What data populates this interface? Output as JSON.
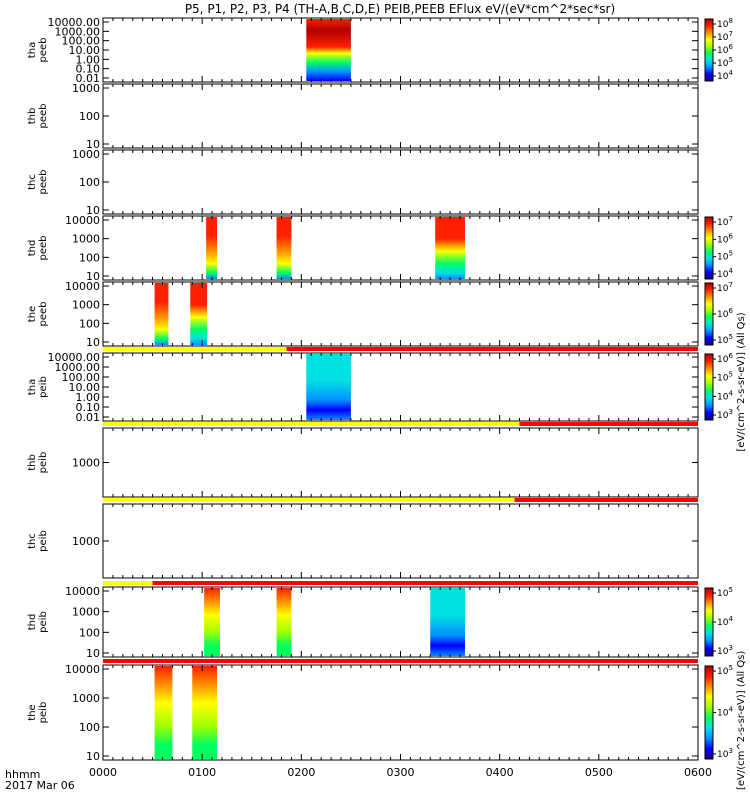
{
  "chart_data": {
    "type": "heatmap",
    "title": "P5, P1, P2, P3, P4 (TH-A,B,C,D,E) PEIB,PEEB EFlux eV/(eV*cm^2*sec*sr)",
    "x_axis": {
      "range_hhmm": [
        "0000",
        "0600"
      ],
      "tick_labels": [
        "0000",
        "0100",
        "0200",
        "0300",
        "0400",
        "0500",
        "0600"
      ],
      "label_line1": "hhmm",
      "label_line2": "2017 Mar 06"
    },
    "right_labels": {
      "eflux_units": "[eV/(cm^2-s-sr-eV)] (All Qs)"
    },
    "panels": [
      {
        "id": "tha-peeb",
        "ylabel": [
          "tha",
          "peeb"
        ],
        "yticks": [
          "10000.00",
          "1000.00",
          "100.00",
          "10.00",
          "1.00",
          "0.10",
          "0.01"
        ],
        "colorbar": [
          "10^4",
          "10^5",
          "10^6",
          "10^7",
          "10^8"
        ],
        "has_colorbar": true,
        "intervals": [
          {
            "start": "0205",
            "end": "0250",
            "profile": "tha_e"
          }
        ]
      },
      {
        "id": "thb-peeb",
        "ylabel": [
          "thb",
          "peeb"
        ],
        "yticks": [
          "1000",
          "100",
          "10"
        ],
        "has_colorbar": false,
        "intervals": []
      },
      {
        "id": "thc-peeb",
        "ylabel": [
          "thc",
          "peeb"
        ],
        "yticks": [
          "1000",
          "100",
          "10"
        ],
        "has_colorbar": false,
        "intervals": []
      },
      {
        "id": "thd-peeb",
        "ylabel": [
          "thd",
          "peeb"
        ],
        "yticks": [
          "10000",
          "1000",
          "100",
          "10"
        ],
        "colorbar": [
          "10^4",
          "10^5",
          "10^6",
          "10^7"
        ],
        "has_colorbar": true,
        "intervals": [
          {
            "start": "0104",
            "end": "0115",
            "profile": "e_hot"
          },
          {
            "start": "0175",
            "end": "0190",
            "profile": "e_hot"
          },
          {
            "start": "0335",
            "end": "0365",
            "profile": "e_mix"
          }
        ]
      },
      {
        "id": "the-peeb",
        "ylabel": [
          "the",
          "peeb"
        ],
        "yticks": [
          "10000",
          "1000",
          "100",
          "10"
        ],
        "colorbar": [
          "10^5",
          "10^6",
          "10^7"
        ],
        "has_colorbar": true,
        "intervals": [
          {
            "start": "0052",
            "end": "0066",
            "profile": "e_hot"
          },
          {
            "start": "0088",
            "end": "0105",
            "profile": "e_mix"
          }
        ]
      },
      {
        "id": "tha-peib",
        "ylabel": [
          "tha",
          "peib"
        ],
        "yticks": [
          "10000.00",
          "1000.00",
          "100.00",
          "10.00",
          "1.00",
          "0.10",
          "0.01"
        ],
        "colorbar": [
          "10^3",
          "10^4",
          "10^5",
          "10^6"
        ],
        "has_colorbar": true,
        "status_bar": {
          "yellow_until": "0185"
        },
        "intervals": [
          {
            "start": "0205",
            "end": "0250",
            "profile": "ion_cool"
          }
        ]
      },
      {
        "id": "thb-peib",
        "ylabel": [
          "thb",
          "peib"
        ],
        "yticks": [
          "1000"
        ],
        "has_colorbar": false,
        "status_bar": {
          "yellow_until": "0420"
        },
        "intervals": []
      },
      {
        "id": "thc-peib",
        "ylabel": [
          "thc",
          "peib"
        ],
        "yticks": [
          "1000"
        ],
        "has_colorbar": false,
        "status_bar": {
          "yellow_until": "0415"
        },
        "intervals": []
      },
      {
        "id": "thd-peib",
        "ylabel": [
          "thd",
          "peib"
        ],
        "yticks": [
          "10000",
          "1000",
          "100",
          "10"
        ],
        "colorbar": [
          "10^3",
          "10^4",
          "10^5"
        ],
        "has_colorbar": true,
        "status_bar": {
          "yellow_until": "0050"
        },
        "intervals": [
          {
            "start": "0102",
            "end": "0118",
            "profile": "ion_hot"
          },
          {
            "start": "0175",
            "end": "0190",
            "profile": "ion_hot"
          },
          {
            "start": "0330",
            "end": "0365",
            "profile": "ion_cool"
          }
        ]
      },
      {
        "id": "the-peib",
        "ylabel": [
          "the",
          "peib"
        ],
        "yticks": [
          "10000",
          "1000",
          "100",
          "10"
        ],
        "colorbar": [
          "10^3",
          "10^4",
          "10^5"
        ],
        "has_colorbar": true,
        "status_bar": {
          "yellow_until": "0000"
        },
        "intervals": [
          {
            "start": "0052",
            "end": "0070",
            "profile": "ion_hot"
          },
          {
            "start": "0090",
            "end": "0115",
            "profile": "ion_hot"
          }
        ]
      }
    ],
    "palette": [
      "#1a0080",
      "#0000ff",
      "#0090ff",
      "#00e0e0",
      "#00ff60",
      "#a0ff00",
      "#ffff00",
      "#ff9000",
      "#ff2000",
      "#b00000"
    ]
  }
}
